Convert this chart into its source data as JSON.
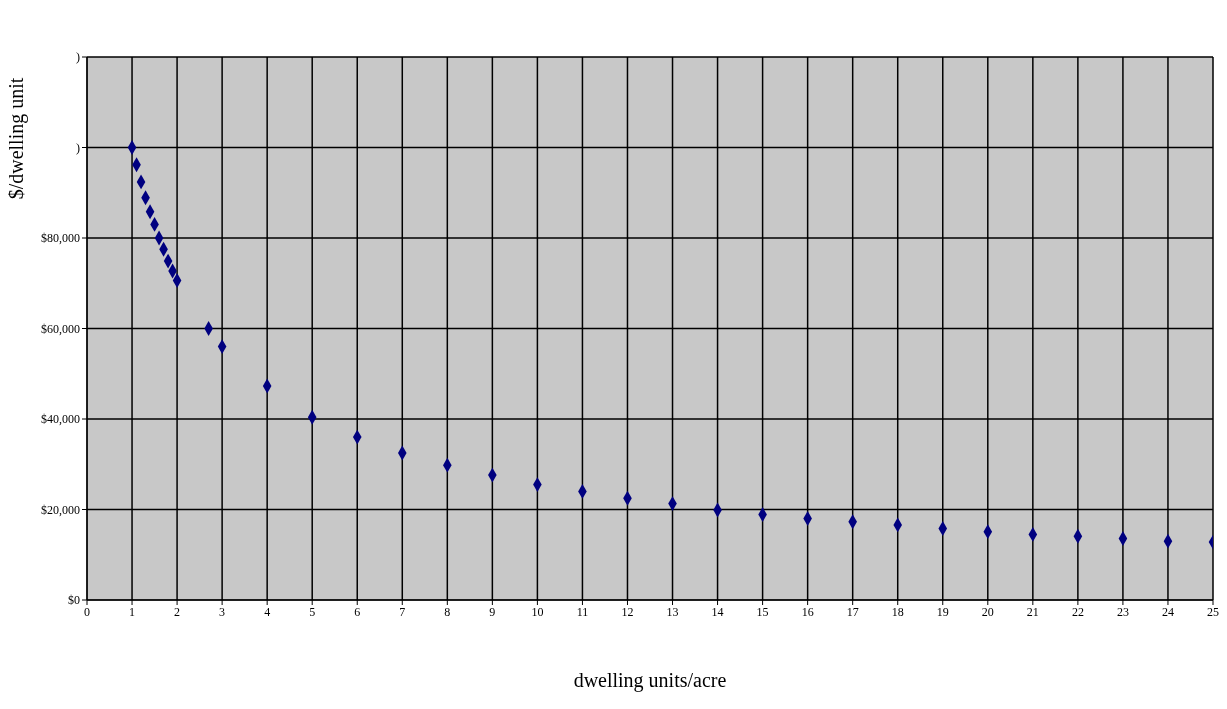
{
  "chart_data": {
    "type": "scatter",
    "xlabel": "dwelling units/acre",
    "ylabel": "$/dwelling unit",
    "x": [
      1,
      1.1,
      1.2,
      1.3,
      1.4,
      1.5,
      1.6,
      1.7,
      1.8,
      1.9,
      2,
      2.7,
      3,
      4,
      5,
      6,
      7,
      8,
      9,
      10,
      11,
      12,
      13,
      14,
      15,
      16,
      17,
      18,
      19,
      20,
      21,
      22,
      23,
      24,
      25
    ],
    "series": [
      {
        "color": "#000080",
        "values": [
          100000,
          96200,
          92400,
          88900,
          85800,
          83000,
          80000,
          77500,
          74900,
          72700,
          70600,
          60000,
          56000,
          47300,
          40400,
          36000,
          32500,
          29800,
          27600,
          25500,
          24000,
          22500,
          21300,
          19900,
          18900,
          18000,
          17300,
          16600,
          15800,
          15100,
          14500,
          14100,
          13600,
          13000,
          12800
        ]
      }
    ],
    "xlim": [
      0,
      25
    ],
    "xticks": [
      0,
      1,
      2,
      3,
      4,
      5,
      6,
      7,
      8,
      9,
      10,
      11,
      12,
      13,
      14,
      15,
      16,
      17,
      18,
      19,
      20,
      21,
      22,
      23,
      24,
      25
    ],
    "ylim": [
      0,
      120000
    ],
    "yticks": [
      {
        "value": 0,
        "label": "$0"
      },
      {
        "value": 20000,
        "label": "$20,000"
      },
      {
        "value": 40000,
        "label": "$40,000"
      },
      {
        "value": 60000,
        "label": "$60,000"
      },
      {
        "value": 80000,
        "label": "$80,000"
      },
      {
        "value": 100000,
        "label": ")"
      },
      {
        "value": 120000,
        "label": ")"
      }
    ],
    "grid": true,
    "legend": false,
    "marker": "diamond"
  }
}
